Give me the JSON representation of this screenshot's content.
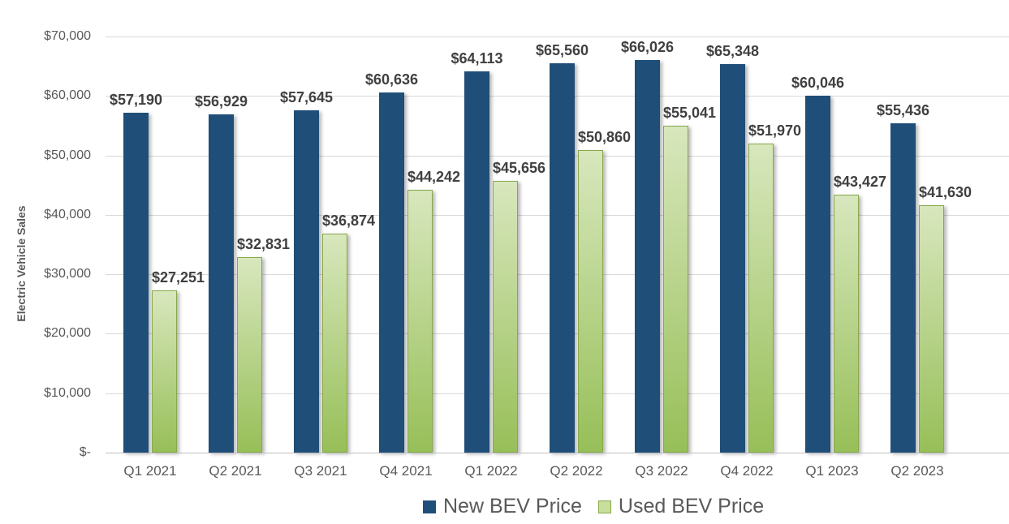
{
  "chart_data": {
    "type": "bar",
    "title": "",
    "xlabel": "",
    "ylabel": "Electric Vehicle Sales",
    "ylim": [
      0,
      70000
    ],
    "grid": true,
    "legend_position": "bottom",
    "categories": [
      "Q1 2021",
      "Q2 2021",
      "Q3 2021",
      "Q4 2021",
      "Q1 2022",
      "Q2 2022",
      "Q3 2022",
      "Q4 2022",
      "Q1 2023",
      "Q2 2023"
    ],
    "series": [
      {
        "name": "New BEV Price",
        "color": "#1F4E79",
        "values": [
          57190,
          56929,
          57645,
          60636,
          64113,
          65560,
          66026,
          65348,
          60046,
          55436
        ],
        "labels": [
          "$57,190",
          "$56,929",
          "$57,645",
          "$60,636",
          "$64,113",
          "$65,560",
          "$66,026",
          "$65,348",
          "$60,046",
          "$55,436"
        ]
      },
      {
        "name": "Used BEV Price",
        "color_top": "#D8E7BD",
        "color_bottom": "#97BF58",
        "border_color": "#87A94C",
        "swatch_color": "#C9DD9C",
        "values": [
          27251,
          32831,
          36874,
          44242,
          45656,
          50860,
          55041,
          51970,
          43427,
          41630
        ],
        "labels": [
          "$27,251",
          "$32,831",
          "$36,874",
          "$44,242",
          "$45,656",
          "$50,860",
          "$55,041",
          "$51,970",
          "$43,427",
          "$41,630"
        ]
      }
    ],
    "y_ticks": [
      {
        "label": "$-",
        "value": 0
      },
      {
        "label": "$10,000",
        "value": 10000
      },
      {
        "label": "$20,000",
        "value": 20000
      },
      {
        "label": "$30,000",
        "value": 30000
      },
      {
        "label": "$40,000",
        "value": 40000
      },
      {
        "label": "$50,000",
        "value": 50000
      },
      {
        "label": "$60,000",
        "value": 60000
      },
      {
        "label": "$70,000",
        "value": 70000
      }
    ],
    "colors": {
      "grid": "#D9D9D9",
      "axis_line": "#BFBFBF",
      "tick_text": "#595959",
      "data_label_text": "#404040",
      "legend_text": "#595959"
    }
  }
}
